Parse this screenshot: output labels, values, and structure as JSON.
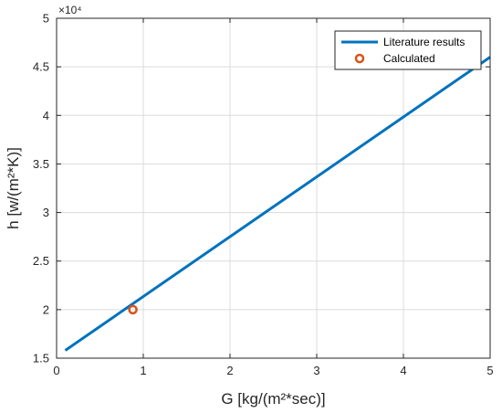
{
  "chart_data": {
    "type": "line",
    "xlabel": "G [kg/(m²*sec)]",
    "ylabel": "h [w/(m²*K)]",
    "xlim": [
      0,
      5
    ],
    "ylim": [
      15000,
      50000
    ],
    "xticks": [
      "0",
      "1",
      "2",
      "3",
      "4",
      "5"
    ],
    "yticks": [
      "1.5",
      "2",
      "2.5",
      "3",
      "3.5",
      "4",
      "4.5",
      "5"
    ],
    "y_exponent_label": "×10⁴",
    "grid": true,
    "legend_position": "top-right",
    "series": [
      {
        "name": "Literature results",
        "kind": "line",
        "color": "#0072BD",
        "x": [
          0.1,
          5.0
        ],
        "y": [
          15800,
          46000
        ]
      },
      {
        "name": "Calculated",
        "kind": "marker",
        "marker": "circle",
        "color": "#D95319",
        "x": [
          0.88
        ],
        "y": [
          20000
        ]
      }
    ]
  }
}
